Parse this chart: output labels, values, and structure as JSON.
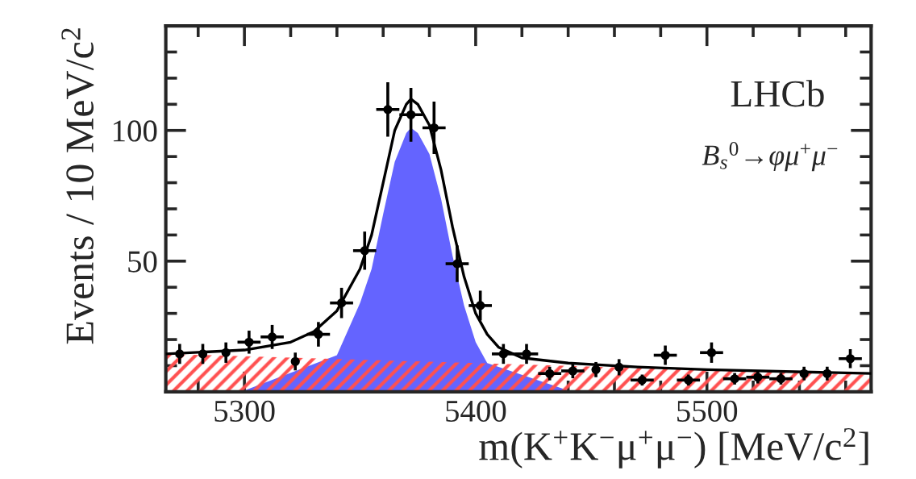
{
  "chart_data": {
    "type": "scatter",
    "xlabel": "m(K$^{+}$K$^{−}$μ$^{+}$μ$^{−}$) [MeV/c$^{2}$]",
    "ylabel": "Events / 10 MeV/c$^{2}$",
    "annotations": [
      "LHCb",
      "B$_{s}$$^{0}$→φμ$^{+}$μ$^{−}$"
    ],
    "xlim": [
      5266,
      5571
    ],
    "ylim": [
      0,
      140
    ],
    "xticks": [
      5300,
      5400,
      5500
    ],
    "yticks": [
      50,
      100
    ],
    "grid": false,
    "legend": false,
    "series": [
      {
        "type": "area",
        "color": "#6464ff",
        "x": [
          5300,
          5340,
          5350,
          5355,
          5360,
          5365,
          5370,
          5372,
          5375,
          5380,
          5385,
          5390,
          5395,
          5400,
          5405,
          5440
        ],
        "values": [
          0.5,
          14,
          34,
          47,
          68,
          88,
          99,
          101,
          99,
          91,
          74,
          52,
          33,
          19,
          11,
          0.5
        ]
      },
      {
        "type": "area",
        "color": "#ff5050",
        "x": [
          5266,
          5571
        ],
        "values": [
          14.5,
          6.5
        ]
      },
      {
        "type": "line",
        "color": "#000000",
        "line_style": "solid",
        "x": [
          5266,
          5300,
          5320,
          5330,
          5340,
          5350,
          5355,
          5360,
          5365,
          5370,
          5372,
          5375,
          5380,
          5385,
          5390,
          5395,
          5400,
          5405,
          5410,
          5420,
          5440,
          5470,
          5500,
          5571
        ],
        "values": [
          14.5,
          16,
          19,
          23,
          31,
          47,
          60,
          80,
          100,
          110,
          112,
          110,
          102,
          85,
          63,
          44,
          30,
          22,
          17,
          13,
          11,
          9.5,
          8.5,
          7
        ]
      },
      {
        "color": "#000000",
        "marker": "circle",
        "x": [
          5272,
          5282,
          5292,
          5302,
          5312,
          5322,
          5332,
          5342,
          5352,
          5362,
          5372,
          5382,
          5392,
          5402,
          5412,
          5422,
          5432,
          5442,
          5452,
          5462,
          5472,
          5482,
          5492,
          5502,
          5512,
          5522,
          5532,
          5542,
          5552,
          5562
        ],
        "values": [
          14.5,
          14.5,
          15,
          19,
          21,
          11.6,
          22,
          34,
          54,
          108,
          106,
          101,
          49,
          33,
          14.5,
          14.5,
          7,
          8,
          8.5,
          9.4,
          4.5,
          14,
          4.5,
          15,
          5,
          5.6,
          5,
          7,
          7,
          12.7
        ],
        "errors": [
          3.8,
          3.8,
          3.9,
          4.4,
          4.6,
          3.4,
          4.7,
          5.8,
          7.3,
          10.4,
          10.3,
          10,
          7,
          5.7,
          3.8,
          3.8,
          2.6,
          2.8,
          2.9,
          3.1,
          2.1,
          3.7,
          2.1,
          3.9,
          2.2,
          2.4,
          2.2,
          2.6,
          2.6,
          3.6
        ],
        "xerrors": [
          null,
          null,
          null,
          5,
          5,
          null,
          5,
          5,
          5,
          5,
          5,
          5,
          5,
          5,
          5,
          5,
          5,
          5,
          null,
          null,
          5,
          5,
          5,
          5,
          5,
          5,
          5,
          null,
          null,
          5
        ]
      }
    ]
  }
}
